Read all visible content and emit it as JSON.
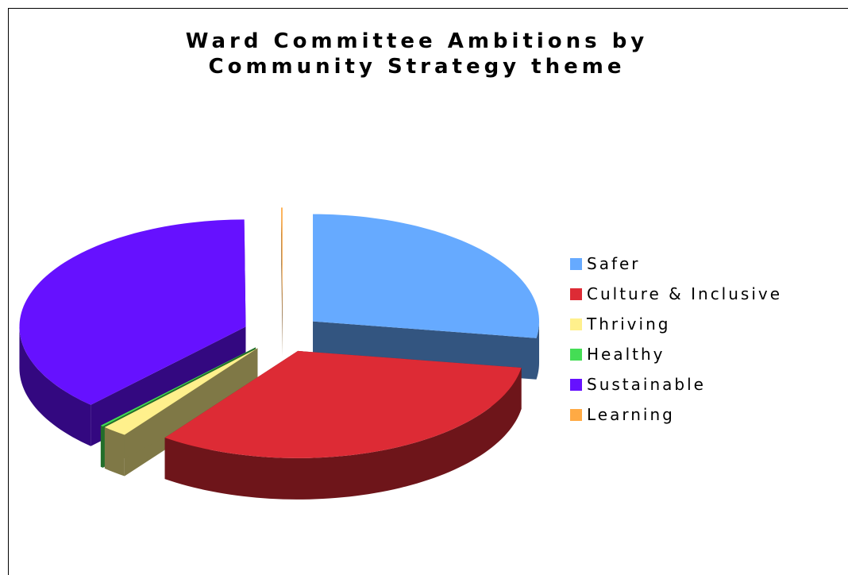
{
  "chart_data": {
    "type": "pie",
    "variant": "3d-exploded",
    "title_lines": [
      "Ward Committee Ambitions by",
      "Community Strategy theme"
    ],
    "categories": [
      "Safer",
      "Culture & Inclusive",
      "Thriving",
      "Healthy",
      "Sustainable",
      "Learning"
    ],
    "values": [
      27.5,
      32.5,
      1.8,
      0.2,
      37.9,
      0.1
    ],
    "colors": [
      "#66aaff",
      "#dd2b35",
      "#fff08c",
      "#44dd55",
      "#6611ff",
      "#ffaa44"
    ],
    "side_colors": [
      "#335580",
      "#6e151a",
      "#7f7846",
      "#226e2a",
      "#330880",
      "#7f5522"
    ],
    "legend_position": "right"
  }
}
